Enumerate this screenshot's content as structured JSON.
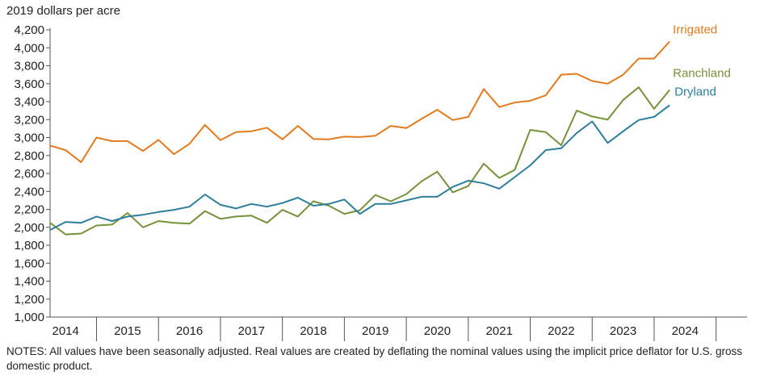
{
  "chart_data": {
    "type": "line",
    "ylabel": "2019 dollars per acre",
    "ylim": [
      1000,
      4200
    ],
    "yticks": [
      1000,
      1200,
      1400,
      1600,
      1800,
      2000,
      2200,
      2400,
      2600,
      2800,
      3000,
      3200,
      3400,
      3600,
      3800,
      4000,
      4200
    ],
    "ytick_labels": [
      "1,000",
      "1,200",
      "1,400",
      "1,600",
      "1,800",
      "2,000",
      "2,200",
      "2,400",
      "2,600",
      "2,800",
      "3,000",
      "3,200",
      "3,400",
      "3,600",
      "3,800",
      "4,000",
      "4,200"
    ],
    "x_start": 2013.75,
    "x_step": 0.25,
    "years": [
      "2014",
      "2015",
      "2016",
      "2017",
      "2018",
      "2019",
      "2020",
      "2021",
      "2022",
      "2023",
      "2024"
    ],
    "series": [
      {
        "name": "Irrigated",
        "color": "#e07b1f",
        "values": [
          2910,
          2860,
          2725,
          3000,
          2960,
          2960,
          2850,
          2975,
          2815,
          2930,
          3140,
          2970,
          3060,
          3070,
          3110,
          2980,
          3130,
          2985,
          2980,
          3010,
          3005,
          3020,
          3130,
          3105,
          3210,
          3310,
          3195,
          3230,
          3540,
          3340,
          3390,
          3410,
          3470,
          3700,
          3710,
          3630,
          3600,
          3700,
          3880,
          3880,
          4070
        ]
      },
      {
        "name": "Ranchland",
        "color": "#76923c",
        "values": [
          2050,
          1920,
          1930,
          2020,
          2030,
          2160,
          2000,
          2070,
          2050,
          2040,
          2180,
          2095,
          2120,
          2130,
          2050,
          2195,
          2120,
          2290,
          2240,
          2150,
          2190,
          2360,
          2290,
          2370,
          2515,
          2620,
          2390,
          2460,
          2710,
          2550,
          2640,
          3085,
          3060,
          2915,
          3300,
          3235,
          3200,
          3420,
          3560,
          3320,
          3530
        ]
      },
      {
        "name": "Dryland",
        "color": "#2e7e9c",
        "values": [
          1970,
          2060,
          2050,
          2120,
          2070,
          2120,
          2140,
          2170,
          2195,
          2230,
          2365,
          2250,
          2210,
          2260,
          2230,
          2270,
          2330,
          2240,
          2260,
          2310,
          2150,
          2260,
          2260,
          2300,
          2340,
          2340,
          2450,
          2520,
          2490,
          2430,
          2560,
          2690,
          2860,
          2880,
          3050,
          3180,
          2940,
          3070,
          3195,
          3230,
          3360
        ]
      }
    ]
  },
  "notes": "NOTES: All values have been seasonally adjusted. Real values are created by deflating the nominal values using the implicit price deflator for U.S. gross domestic product."
}
